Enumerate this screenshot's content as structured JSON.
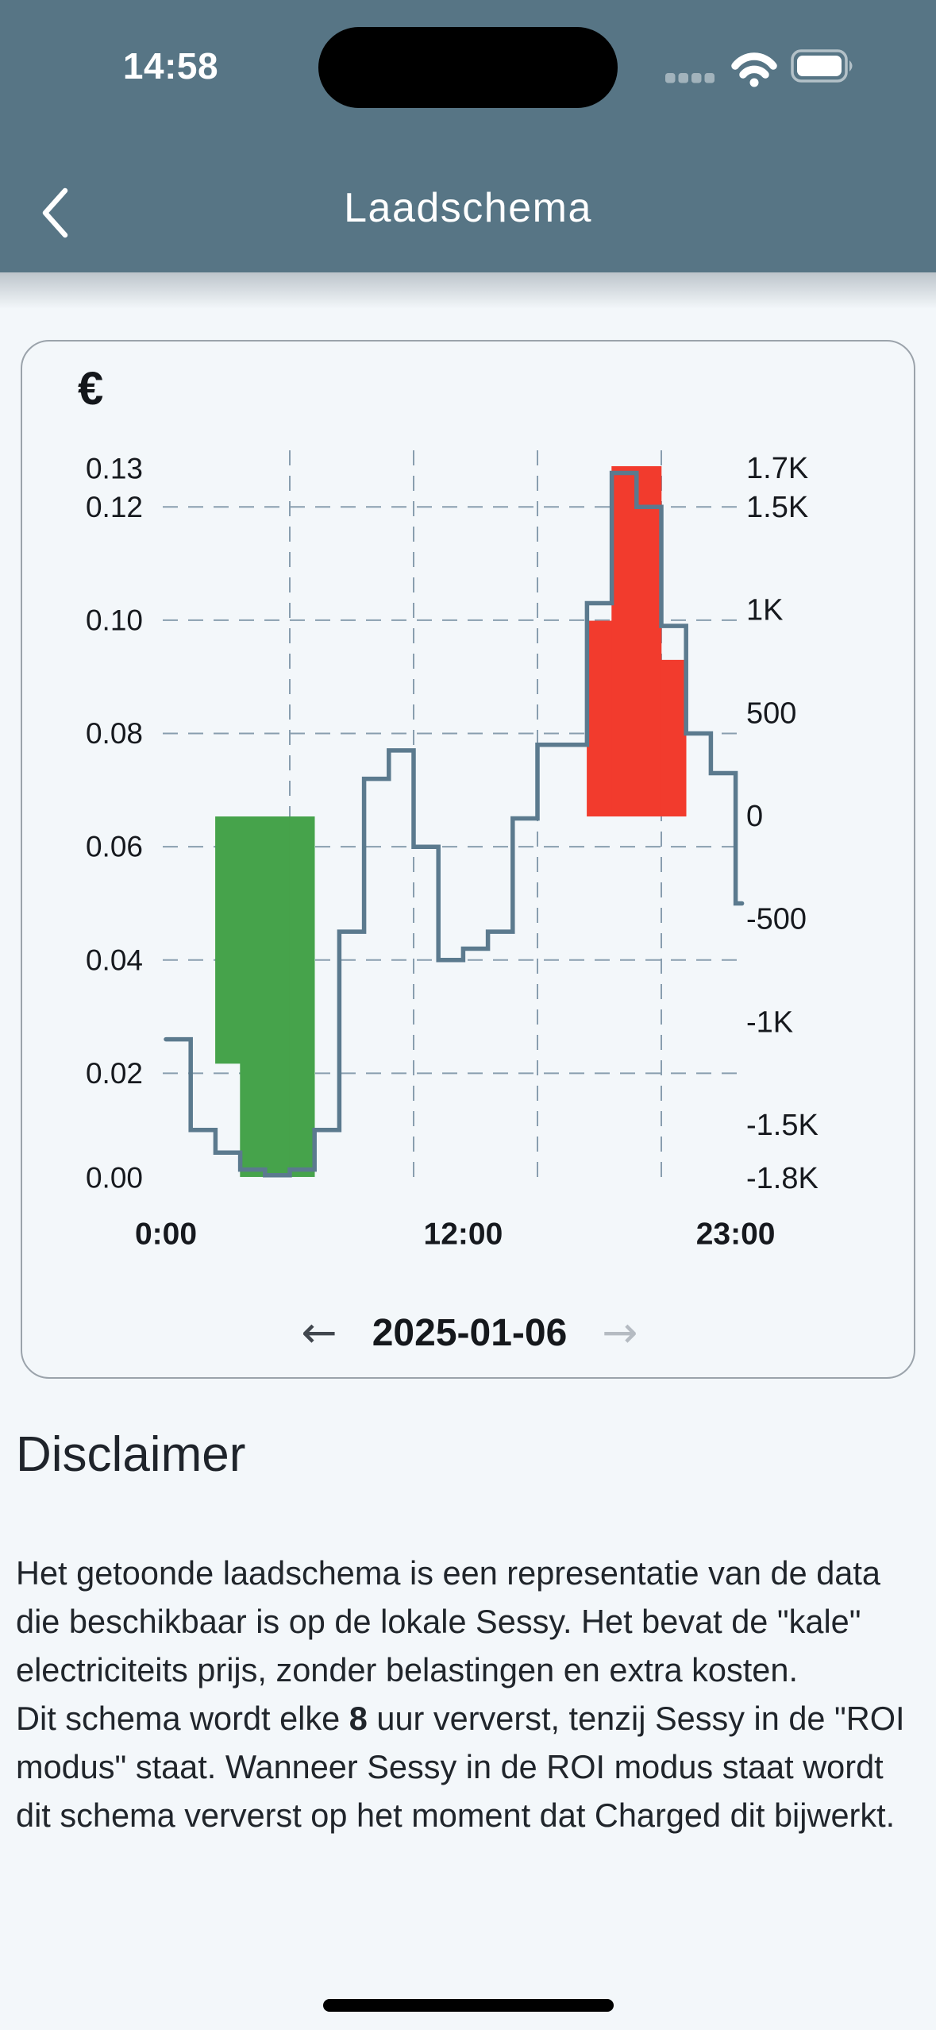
{
  "status_bar": {
    "time": "14:58",
    "icons": [
      "cellular-dots-icon",
      "wifi-icon",
      "battery-icon"
    ]
  },
  "nav": {
    "back_icon": "chevron-left",
    "title": "Laadschema"
  },
  "card": {
    "date_nav": {
      "prev_label": "←",
      "date": "2025-01-06",
      "next_label": "→"
    }
  },
  "chart_data": {
    "type": "line",
    "line_style": "step-after",
    "x_hours": [
      0,
      1,
      2,
      3,
      4,
      5,
      6,
      7,
      8,
      9,
      10,
      11,
      12,
      13,
      14,
      15,
      16,
      17,
      18,
      19,
      20,
      21,
      22,
      23
    ],
    "price_eur_per_kwh": [
      0.026,
      0.01,
      0.006,
      0.003,
      0.002,
      0.003,
      0.01,
      0.045,
      0.072,
      0.077,
      0.06,
      0.04,
      0.042,
      0.045,
      0.065,
      0.078,
      0.078,
      0.103,
      0.126,
      0.12,
      0.099,
      0.08,
      0.073,
      0.05
    ],
    "charge_bars_w": [
      {
        "hour": 2,
        "watts": -1200
      },
      {
        "hour": 3,
        "watts": -1750
      },
      {
        "hour": 4,
        "watts": -1750
      },
      {
        "hour": 5,
        "watts": -1750
      }
    ],
    "discharge_bars_w": [
      {
        "hour": 17,
        "watts": 950
      },
      {
        "hour": 18,
        "watts": 1700
      },
      {
        "hour": 19,
        "watts": 1700
      },
      {
        "hour": 20,
        "watts": 760
      }
    ],
    "left_axis": {
      "symbol": "€",
      "range": [
        0,
        0.13
      ],
      "ticks": [
        {
          "label": "0.13",
          "value": 0.13
        },
        {
          "label": "0.12",
          "value": 0.12
        },
        {
          "label": "0.10",
          "value": 0.1
        },
        {
          "label": "0.08",
          "value": 0.08
        },
        {
          "label": "0.06",
          "value": 0.06
        },
        {
          "label": "0.04",
          "value": 0.04
        },
        {
          "label": "0.02",
          "value": 0.02
        },
        {
          "label": "0.00",
          "value": 0.0
        }
      ],
      "gridlines": [
        0.12,
        0.1,
        0.08,
        0.06,
        0.04,
        0.02
      ]
    },
    "right_axis": {
      "range": [
        -1800,
        1700
      ],
      "ticks": [
        {
          "label": "1.7K",
          "value": 1700
        },
        {
          "label": "1.5K",
          "value": 1500
        },
        {
          "label": "1K",
          "value": 1000
        },
        {
          "label": "500",
          "value": 500
        },
        {
          "label": "0",
          "value": 0
        },
        {
          "label": "-500",
          "value": -500
        },
        {
          "label": "-1K",
          "value": -1000
        },
        {
          "label": "-1.5K",
          "value": -1500
        },
        {
          "label": "-1.8K",
          "value": -1800
        }
      ]
    },
    "x_axis": {
      "ticks": [
        {
          "label": "0:00",
          "hour": 0
        },
        {
          "label": "12:00",
          "hour": 12
        },
        {
          "label": "23:00",
          "hour": 23
        }
      ],
      "gridline_hours": [
        5,
        10,
        15,
        20
      ]
    },
    "colors": {
      "line": "#5b7a8e",
      "charge": "#46a34b",
      "discharge": "#f23b2d",
      "grid": "#7e95a7",
      "axis_text": "#16191e"
    },
    "legend": "none",
    "grid": "dashed"
  },
  "disclaimer": {
    "heading": "Disclaimer",
    "part1": "Het getoonde laadschema is een representatie van de data die beschikbaar is op de lokale Sessy. Het bevat de \"kale\" electriciteits prijs, zonder belastingen en extra kosten.",
    "part2_before": "Dit schema wordt elke ",
    "part2_bold": "8",
    "part2_after": " uur ververst, tenzij Sessy in de \"ROI modus\" staat. Wanneer Sessy in de ROI modus staat wordt dit schema ververst op het moment dat Charged dit bijwerkt."
  }
}
